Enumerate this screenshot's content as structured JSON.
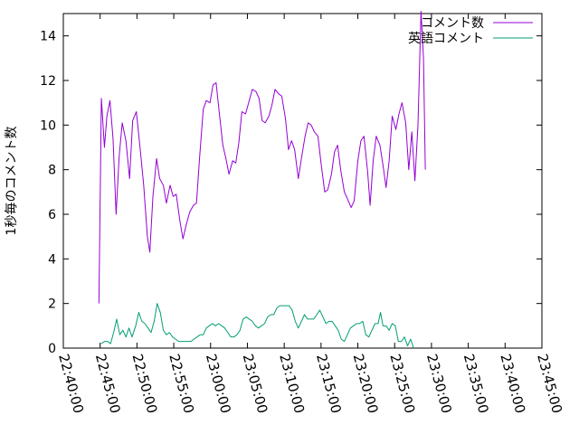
{
  "chart_data": {
    "type": "line",
    "title": "",
    "xlabel": "",
    "ylabel": "1秒毎のコメント数",
    "x_unit": "time (HH:MM:SS)",
    "xlim": [
      "22:40:00",
      "23:45:00"
    ],
    "ylim": [
      0,
      15
    ],
    "x_ticks": [
      "22:40:00",
      "22:45:00",
      "22:50:00",
      "22:55:00",
      "23:00:00",
      "23:05:00",
      "23:10:00",
      "23:15:00",
      "23:20:00",
      "23:25:00",
      "23:30:00",
      "23:35:00",
      "23:40:00",
      "23:45:00"
    ],
    "y_ticks": [
      0,
      2,
      4,
      6,
      8,
      10,
      12,
      14
    ],
    "grid": false,
    "legend_position": "top-right",
    "series": [
      {
        "name": "コメント数",
        "color": "#9400d3",
        "points": [
          [
            "22:44:50",
            2.0
          ],
          [
            "22:45:10",
            11.2
          ],
          [
            "22:45:35",
            9.0
          ],
          [
            "22:45:55",
            10.4
          ],
          [
            "22:46:20",
            11.1
          ],
          [
            "22:46:45",
            9.4
          ],
          [
            "22:47:10",
            6.0
          ],
          [
            "22:47:35",
            8.6
          ],
          [
            "22:48:00",
            10.1
          ],
          [
            "22:48:30",
            9.3
          ],
          [
            "22:49:00",
            7.6
          ],
          [
            "22:49:25",
            10.2
          ],
          [
            "22:49:55",
            10.6
          ],
          [
            "22:50:25",
            9.0
          ],
          [
            "22:50:55",
            7.3
          ],
          [
            "22:51:25",
            5.0
          ],
          [
            "22:51:45",
            4.3
          ],
          [
            "22:52:10",
            6.8
          ],
          [
            "22:52:40",
            8.5
          ],
          [
            "22:53:05",
            7.6
          ],
          [
            "22:53:35",
            7.3
          ],
          [
            "22:54:00",
            6.5
          ],
          [
            "22:54:30",
            7.3
          ],
          [
            "22:54:55",
            6.8
          ],
          [
            "22:55:20",
            6.9
          ],
          [
            "22:55:50",
            5.7
          ],
          [
            "22:56:15",
            4.9
          ],
          [
            "22:56:40",
            5.5
          ],
          [
            "22:57:10",
            6.1
          ],
          [
            "22:57:40",
            6.4
          ],
          [
            "22:58:05",
            6.5
          ],
          [
            "22:58:30",
            8.5
          ],
          [
            "22:59:00",
            10.7
          ],
          [
            "22:59:25",
            11.1
          ],
          [
            "22:59:55",
            11.0
          ],
          [
            "23:00:20",
            11.8
          ],
          [
            "23:00:45",
            11.9
          ],
          [
            "23:01:10",
            10.6
          ],
          [
            "23:01:40",
            9.1
          ],
          [
            "23:02:05",
            8.5
          ],
          [
            "23:02:30",
            7.8
          ],
          [
            "23:03:00",
            8.4
          ],
          [
            "23:03:25",
            8.3
          ],
          [
            "23:03:50",
            9.2
          ],
          [
            "23:04:15",
            10.6
          ],
          [
            "23:04:45",
            10.5
          ],
          [
            "23:05:15",
            11.1
          ],
          [
            "23:05:40",
            11.6
          ],
          [
            "23:06:10",
            11.5
          ],
          [
            "23:06:35",
            11.2
          ],
          [
            "23:07:00",
            10.2
          ],
          [
            "23:07:25",
            10.1
          ],
          [
            "23:07:55",
            10.4
          ],
          [
            "23:08:20",
            10.9
          ],
          [
            "23:08:45",
            11.6
          ],
          [
            "23:09:15",
            11.4
          ],
          [
            "23:09:40",
            11.3
          ],
          [
            "23:10:10",
            10.3
          ],
          [
            "23:10:35",
            8.9
          ],
          [
            "23:11:00",
            9.3
          ],
          [
            "23:11:25",
            8.9
          ],
          [
            "23:11:55",
            7.6
          ],
          [
            "23:12:20",
            8.5
          ],
          [
            "23:12:50",
            9.5
          ],
          [
            "23:13:15",
            10.1
          ],
          [
            "23:13:40",
            10.0
          ],
          [
            "23:14:05",
            9.7
          ],
          [
            "23:14:35",
            9.5
          ],
          [
            "23:15:00",
            8.3
          ],
          [
            "23:15:30",
            7.0
          ],
          [
            "23:15:55",
            7.1
          ],
          [
            "23:16:25",
            7.8
          ],
          [
            "23:16:50",
            8.8
          ],
          [
            "23:17:15",
            9.1
          ],
          [
            "23:17:40",
            8.0
          ],
          [
            "23:18:10",
            7.0
          ],
          [
            "23:18:35",
            6.7
          ],
          [
            "23:19:05",
            6.3
          ],
          [
            "23:19:30",
            6.6
          ],
          [
            "23:20:00",
            8.4
          ],
          [
            "23:20:25",
            9.3
          ],
          [
            "23:20:50",
            9.5
          ],
          [
            "23:21:20",
            7.9
          ],
          [
            "23:21:40",
            6.4
          ],
          [
            "23:22:05",
            8.4
          ],
          [
            "23:22:30",
            9.5
          ],
          [
            "23:23:00",
            9.1
          ],
          [
            "23:23:25",
            8.2
          ],
          [
            "23:23:50",
            7.2
          ],
          [
            "23:24:15",
            8.4
          ],
          [
            "23:24:40",
            10.4
          ],
          [
            "23:25:10",
            9.8
          ],
          [
            "23:25:35",
            10.5
          ],
          [
            "23:26:00",
            11.0
          ],
          [
            "23:26:30",
            10.1
          ],
          [
            "23:26:55",
            8.0
          ],
          [
            "23:27:20",
            9.7
          ],
          [
            "23:27:45",
            7.5
          ],
          [
            "23:28:10",
            10.0
          ],
          [
            "23:28:35",
            15.1
          ],
          [
            "23:28:55",
            13.0
          ],
          [
            "23:29:10",
            8.0
          ]
        ]
      },
      {
        "name": "英語コメント",
        "color": "#009e73",
        "points": [
          [
            "22:45:10",
            0.2
          ],
          [
            "22:45:35",
            0.3
          ],
          [
            "22:46:00",
            0.3
          ],
          [
            "22:46:25",
            0.2
          ],
          [
            "22:46:50",
            0.7
          ],
          [
            "22:47:15",
            1.3
          ],
          [
            "22:47:40",
            0.6
          ],
          [
            "22:48:05",
            0.8
          ],
          [
            "22:48:30",
            0.5
          ],
          [
            "22:48:55",
            0.9
          ],
          [
            "22:49:20",
            0.5
          ],
          [
            "22:49:50",
            1.0
          ],
          [
            "22:50:15",
            1.6
          ],
          [
            "22:50:40",
            1.2
          ],
          [
            "22:51:05",
            1.1
          ],
          [
            "22:51:30",
            0.9
          ],
          [
            "22:51:55",
            0.7
          ],
          [
            "22:52:20",
            1.2
          ],
          [
            "22:52:45",
            2.0
          ],
          [
            "22:53:10",
            1.6
          ],
          [
            "22:53:35",
            0.8
          ],
          [
            "22:54:00",
            0.6
          ],
          [
            "22:54:25",
            0.7
          ],
          [
            "22:54:50",
            0.5
          ],
          [
            "22:55:15",
            0.4
          ],
          [
            "22:55:40",
            0.3
          ],
          [
            "22:56:05",
            0.3
          ],
          [
            "22:56:30",
            0.3
          ],
          [
            "22:56:55",
            0.3
          ],
          [
            "22:57:20",
            0.3
          ],
          [
            "22:57:45",
            0.4
          ],
          [
            "22:58:10",
            0.5
          ],
          [
            "22:58:35",
            0.6
          ],
          [
            "22:59:00",
            0.6
          ],
          [
            "22:59:25",
            0.9
          ],
          [
            "22:59:50",
            1.0
          ],
          [
            "23:00:15",
            1.1
          ],
          [
            "23:00:40",
            1.0
          ],
          [
            "23:01:05",
            1.1
          ],
          [
            "23:01:30",
            1.0
          ],
          [
            "23:01:55",
            0.9
          ],
          [
            "23:02:20",
            0.7
          ],
          [
            "23:02:45",
            0.5
          ],
          [
            "23:03:10",
            0.5
          ],
          [
            "23:03:35",
            0.6
          ],
          [
            "23:04:00",
            0.8
          ],
          [
            "23:04:25",
            1.3
          ],
          [
            "23:04:50",
            1.4
          ],
          [
            "23:05:15",
            1.3
          ],
          [
            "23:05:40",
            1.2
          ],
          [
            "23:06:05",
            1.0
          ],
          [
            "23:06:30",
            0.9
          ],
          [
            "23:06:55",
            1.0
          ],
          [
            "23:07:20",
            1.1
          ],
          [
            "23:07:45",
            1.4
          ],
          [
            "23:08:10",
            1.5
          ],
          [
            "23:08:35",
            1.5
          ],
          [
            "23:09:00",
            1.8
          ],
          [
            "23:09:25",
            1.9
          ],
          [
            "23:09:50",
            1.9
          ],
          [
            "23:10:15",
            1.9
          ],
          [
            "23:10:40",
            1.9
          ],
          [
            "23:11:05",
            1.7
          ],
          [
            "23:11:30",
            1.2
          ],
          [
            "23:11:55",
            0.9
          ],
          [
            "23:12:20",
            1.2
          ],
          [
            "23:12:45",
            1.5
          ],
          [
            "23:13:10",
            1.3
          ],
          [
            "23:13:35",
            1.3
          ],
          [
            "23:14:00",
            1.3
          ],
          [
            "23:14:25",
            1.5
          ],
          [
            "23:14:50",
            1.7
          ],
          [
            "23:15:15",
            1.4
          ],
          [
            "23:15:40",
            1.1
          ],
          [
            "23:16:05",
            1.2
          ],
          [
            "23:16:30",
            1.2
          ],
          [
            "23:16:55",
            1.0
          ],
          [
            "23:17:20",
            0.8
          ],
          [
            "23:17:45",
            0.4
          ],
          [
            "23:18:10",
            0.3
          ],
          [
            "23:18:35",
            0.6
          ],
          [
            "23:19:00",
            0.9
          ],
          [
            "23:19:25",
            1.0
          ],
          [
            "23:19:50",
            1.1
          ],
          [
            "23:20:15",
            1.1
          ],
          [
            "23:20:40",
            1.2
          ],
          [
            "23:21:05",
            0.6
          ],
          [
            "23:21:30",
            0.5
          ],
          [
            "23:21:55",
            0.8
          ],
          [
            "23:22:20",
            1.1
          ],
          [
            "23:22:45",
            1.1
          ],
          [
            "23:23:05",
            1.6
          ],
          [
            "23:23:25",
            1.0
          ],
          [
            "23:23:50",
            1.0
          ],
          [
            "23:24:15",
            0.8
          ],
          [
            "23:24:40",
            1.1
          ],
          [
            "23:25:05",
            1.0
          ],
          [
            "23:25:30",
            0.3
          ],
          [
            "23:25:55",
            0.3
          ],
          [
            "23:26:20",
            0.5
          ],
          [
            "23:26:45",
            0.1
          ],
          [
            "23:27:10",
            0.4
          ],
          [
            "23:27:35",
            0.0
          ]
        ]
      }
    ]
  }
}
